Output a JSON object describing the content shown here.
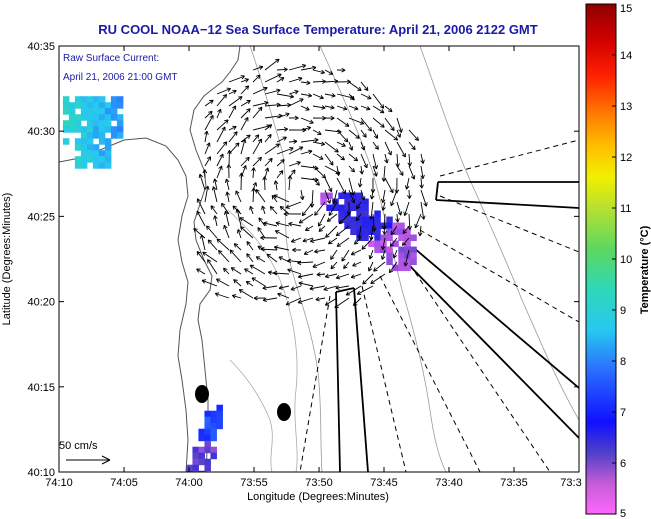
{
  "chart_data": {
    "type": "heatmap",
    "title": "RU COOL  NOAA−12  Sea Surface Temperature:  April 21, 2006 2122 GMT",
    "xlabel": "Longitude (Degrees:Minutes)",
    "ylabel": "Latitude (Degrees:Minutes)",
    "xlim": [
      -74.1667,
      -73.5
    ],
    "ylim": [
      40.1667,
      40.5833
    ],
    "x_ticks": [
      {
        "value": -74.1667,
        "label": "74:10"
      },
      {
        "value": -74.0833,
        "label": "74:05"
      },
      {
        "value": -74.0,
        "label": "74:00"
      },
      {
        "value": -73.9167,
        "label": "73:55"
      },
      {
        "value": -73.8333,
        "label": "73:50"
      },
      {
        "value": -73.75,
        "label": "73:45"
      },
      {
        "value": -73.6667,
        "label": "73:40"
      },
      {
        "value": -73.5833,
        "label": "73:35"
      },
      {
        "value": -73.5,
        "label": "73:3"
      }
    ],
    "y_ticks": [
      {
        "value": 40.1667,
        "label": "40:10"
      },
      {
        "value": 40.25,
        "label": "40:15"
      },
      {
        "value": 40.3333,
        "label": "40:20"
      },
      {
        "value": 40.4167,
        "label": "40:25"
      },
      {
        "value": 40.5,
        "label": "40:30"
      },
      {
        "value": 40.5833,
        "label": "40:35"
      }
    ],
    "colorbar": {
      "label": "Temperature (°C)",
      "range": [
        5,
        15
      ],
      "ticks": [
        5,
        6,
        7,
        8,
        9,
        10,
        11,
        12,
        13,
        14,
        15
      ]
    },
    "annotations": [
      {
        "text": "Raw Surface Current:"
      },
      {
        "text": "April 21, 2006 21:00 GMT"
      }
    ],
    "scale_arrow_label": "50 cm/s",
    "sst_patches": [
      {
        "region": "upper-left",
        "temperature_range": [
          8,
          10
        ],
        "bbox_deg": [
          [
            -74.1617,
            40.4675
          ],
          [
            -74.0867,
            40.5342
          ]
        ]
      },
      {
        "region": "offshore-center",
        "temperature_range": [
          5,
          7
        ],
        "bbox_deg": [
          [
            -73.8317,
            40.3683
          ],
          [
            -73.7117,
            40.44
          ]
        ]
      },
      {
        "region": "shoreline-south",
        "temperature_range": [
          5,
          8
        ],
        "bbox_deg": [
          [
            -74.0033,
            40.1667
          ],
          [
            -73.9617,
            40.2325
          ]
        ]
      }
    ],
    "vector_field_center": [
      -73.8617,
      40.4417
    ],
    "markers": [
      {
        "name": "station-marker-1",
        "x": -73.9867,
        "y": 40.2467
      },
      {
        "name": "station-marker-2",
        "x": -73.9017,
        "y": 40.2317
      }
    ]
  }
}
